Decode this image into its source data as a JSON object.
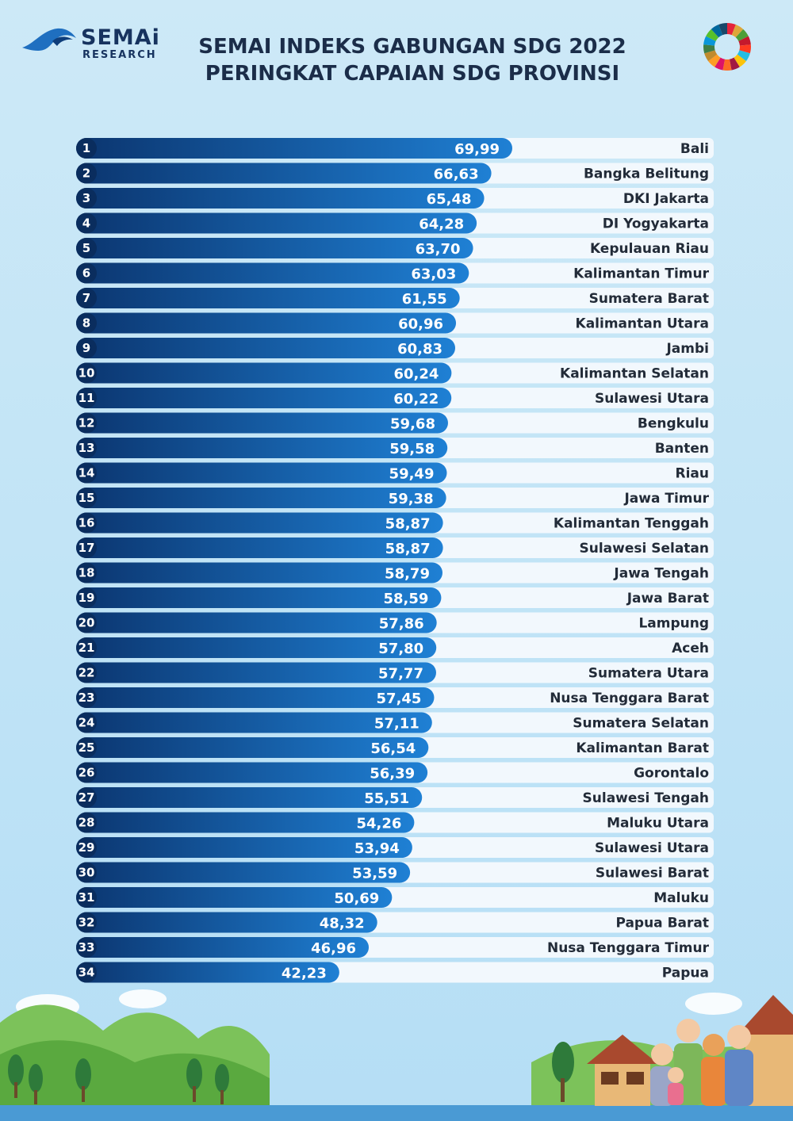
{
  "header": {
    "brand": "SEMAi",
    "brand_sub": "RESEARCH",
    "title_line1": "SEMAI INDEKS GABUNGAN SDG 2022",
    "title_line2": "PERINGKAT CAPAIAN SDG PROVINSI"
  },
  "colors": {
    "bar_dark": "#0d3b7a",
    "bar_light": "#1c7bd0",
    "row_bg": "#f2f8fd",
    "page_bg": "#c4e5f6"
  },
  "chart_data": {
    "type": "bar",
    "orientation": "horizontal",
    "title": "SEMAI INDEKS GABUNGAN SDG 2022 — PERINGKAT CAPAIAN SDG PROVINSI",
    "xlim": [
      0,
      75
    ],
    "ranks": [
      "1",
      "2",
      "3",
      "4",
      "5",
      "6",
      "7",
      "8",
      "9",
      "10",
      "11",
      "12",
      "13",
      "14",
      "15",
      "16",
      "17",
      "18",
      "19",
      "20",
      "21",
      "22",
      "23",
      "24",
      "25",
      "26",
      "27",
      "28",
      "29",
      "30",
      "31",
      "32",
      "33",
      "34"
    ],
    "categories": [
      "Bali",
      "Bangka Belitung",
      "DKI Jakarta",
      "DI Yogyakarta",
      "Kepulauan Riau",
      "Kalimantan Timur",
      "Sumatera Barat",
      "Kalimantan Utara",
      "Jambi",
      "Kalimantan Selatan",
      "Sulawesi Utara",
      "Bengkulu",
      "Banten",
      "Riau",
      "Jawa Timur",
      "Kalimantan Tenggah",
      "Sulawesi Selatan",
      "Jawa Tengah",
      "Jawa Barat",
      "Lampung",
      "Aceh",
      "Sumatera Utara",
      "Nusa Tenggara Barat",
      "Sumatera Selatan",
      "Kalimantan Barat",
      "Gorontalo",
      "Sulawesi Tengah",
      "Maluku Utara",
      "Sulawesi Utara",
      "Sulawesi Barat",
      "Maluku",
      "Papua Barat",
      "Nusa Tenggara Timur",
      "Papua"
    ],
    "values": [
      69.99,
      66.63,
      65.48,
      64.28,
      63.7,
      63.03,
      61.55,
      60.96,
      60.83,
      60.24,
      60.22,
      59.68,
      59.58,
      59.49,
      59.38,
      58.87,
      58.87,
      58.79,
      58.59,
      57.86,
      57.8,
      57.77,
      57.45,
      57.11,
      56.54,
      56.39,
      55.51,
      54.26,
      53.94,
      53.59,
      50.69,
      48.32,
      46.96,
      42.23
    ],
    "value_labels": [
      "69,99",
      "66,63",
      "65,48",
      "64,28",
      "63,70",
      "63,03",
      "61,55",
      "60,96",
      "60,83",
      "60,24",
      "60,22",
      "59,68",
      "59,58",
      "59,49",
      "59,38",
      "58,87",
      "58,87",
      "58,79",
      "58,59",
      "57,86",
      "57,80",
      "57,77",
      "57,45",
      "57,11",
      "56,54",
      "56,39",
      "55,51",
      "54,26",
      "53,94",
      "53,59",
      "50,69",
      "48,32",
      "46,96",
      "42,23"
    ]
  }
}
